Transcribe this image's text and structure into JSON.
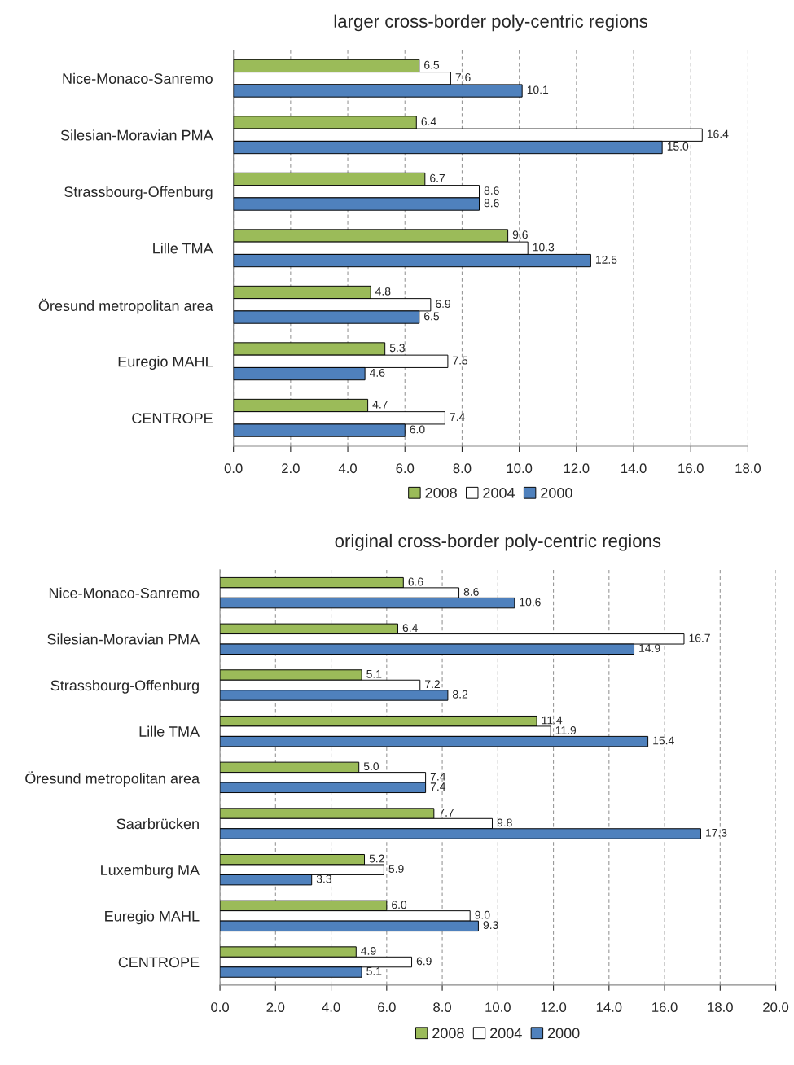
{
  "chart_data": [
    {
      "type": "bar",
      "orientation": "horizontal",
      "title": "larger cross-border poly-centric regions",
      "categories": [
        "Nice-Monaco-Sanremo",
        "Silesian-Moravian PMA",
        "Strassbourg-Offenburg",
        "Lille TMA",
        "Öresund metropolitan area",
        "Euregio MAHL",
        "CENTROPE"
      ],
      "series": [
        {
          "name": "2008",
          "color": "#9bbb59",
          "values": [
            6.5,
            6.4,
            6.7,
            9.6,
            4.8,
            5.3,
            4.7
          ],
          "value_labels": [
            "6.5",
            "6.4",
            "6.7",
            "9.6",
            "4.8",
            "5.3",
            "4.7"
          ]
        },
        {
          "name": "2004",
          "color": "#ffffff",
          "values": [
            7.6,
            16.4,
            8.6,
            10.3,
            6.9,
            7.5,
            7.4
          ],
          "value_labels": [
            "7.6",
            "16.4",
            "8.6",
            "10.3",
            "6.9",
            "7.5",
            "7.4"
          ]
        },
        {
          "name": "2000",
          "color": "#4f81bd",
          "values": [
            10.1,
            15.0,
            8.6,
            12.5,
            6.5,
            4.6,
            6.0
          ],
          "value_labels": [
            "10.1",
            "15.0",
            "8.6",
            "12.5",
            "6.5",
            "4.6",
            "6.0"
          ]
        }
      ],
      "xlim": [
        0,
        18
      ],
      "xticks": [
        {
          "value": 0,
          "label": "0.0"
        },
        {
          "value": 2,
          "label": "2.0"
        },
        {
          "value": 4,
          "label": "4.0"
        },
        {
          "value": 6,
          "label": "6.0"
        },
        {
          "value": 8,
          "label": "8.0"
        },
        {
          "value": 10,
          "label": "10.0"
        },
        {
          "value": 12,
          "label": "12.0"
        },
        {
          "value": 14,
          "label": "14.0"
        },
        {
          "value": 16,
          "label": "16.0"
        },
        {
          "value": 18,
          "label": "18.0"
        }
      ],
      "grid": "x",
      "legend": "bottom"
    },
    {
      "type": "bar",
      "orientation": "horizontal",
      "title": "original cross-border poly-centric regions",
      "categories": [
        "Nice-Monaco-Sanremo",
        "Silesian-Moravian PMA",
        "Strassbourg-Offenburg",
        "Lille TMA",
        "Öresund metropolitan area",
        "Saarbrücken",
        "Luxemburg MA",
        "Euregio MAHL",
        "CENTROPE"
      ],
      "series": [
        {
          "name": "2008",
          "color": "#9bbb59",
          "values": [
            6.6,
            6.4,
            5.1,
            11.4,
            5.0,
            7.7,
            5.2,
            6.0,
            4.9
          ],
          "value_labels": [
            "6.6",
            "6.4",
            "5.1",
            "11.4",
            "5.0",
            "7.7",
            "5.2",
            "6.0",
            "4.9"
          ]
        },
        {
          "name": "2004",
          "color": "#ffffff",
          "values": [
            8.6,
            16.7,
            7.2,
            11.9,
            7.4,
            9.8,
            5.9,
            9.0,
            6.9
          ],
          "value_labels": [
            "8.6",
            "16.7",
            "7.2",
            "11.9",
            "7.4",
            "9.8",
            "5.9",
            "9.0",
            "6.9"
          ]
        },
        {
          "name": "2000",
          "color": "#4f81bd",
          "values": [
            10.6,
            14.9,
            8.2,
            15.4,
            7.4,
            17.3,
            3.3,
            9.3,
            5.1
          ],
          "value_labels": [
            "10.6",
            "14.9",
            "8.2",
            "15.4",
            "7.4",
            "17.3",
            "3.3",
            "9.3",
            "5.1"
          ]
        }
      ],
      "xlim": [
        0,
        20
      ],
      "xticks": [
        {
          "value": 0,
          "label": "0.0"
        },
        {
          "value": 2,
          "label": "2.0"
        },
        {
          "value": 4,
          "label": "4.0"
        },
        {
          "value": 6,
          "label": "6.0"
        },
        {
          "value": 8,
          "label": "8.0"
        },
        {
          "value": 10,
          "label": "10.0"
        },
        {
          "value": 12,
          "label": "12.0"
        },
        {
          "value": 14,
          "label": "14.0"
        },
        {
          "value": 16,
          "label": "16.0"
        },
        {
          "value": 18,
          "label": "18.0"
        },
        {
          "value": 20,
          "label": "20.0"
        }
      ],
      "grid": "x",
      "legend": "bottom"
    }
  ]
}
